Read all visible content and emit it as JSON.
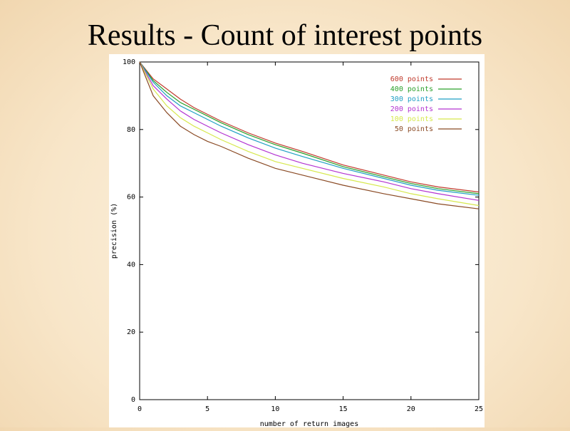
{
  "slide": {
    "title": "Results - Count of interest points"
  },
  "chart_data": {
    "type": "line",
    "xlabel": "number of return images",
    "ylabel": "precision (%)",
    "xlim": [
      0,
      25
    ],
    "ylim": [
      0,
      100
    ],
    "xticks": [
      0,
      5,
      10,
      15,
      20,
      25
    ],
    "yticks": [
      0,
      20,
      40,
      60,
      80,
      100
    ],
    "grid": false,
    "legend_position": "top-right",
    "x": [
      0,
      1,
      2,
      3,
      4,
      5,
      6,
      8,
      10,
      12,
      15,
      18,
      20,
      22,
      25
    ],
    "series": [
      {
        "name": "600 points",
        "color": "#c0392b",
        "values": [
          100,
          95,
          92,
          89,
          86.5,
          84.5,
          82.5,
          79,
          76,
          73.5,
          69.5,
          66.5,
          64.5,
          63,
          61.5
        ]
      },
      {
        "name": "400 points",
        "color": "#2aa02a",
        "values": [
          100,
          94.5,
          91,
          88,
          86,
          84,
          82,
          78.5,
          75.5,
          73,
          69,
          66,
          64,
          62.5,
          61
        ]
      },
      {
        "name": "300 points",
        "color": "#1f9fc4",
        "values": [
          100,
          94,
          90,
          87,
          85,
          83,
          81,
          77.5,
          74.5,
          72,
          68.5,
          65.5,
          63.5,
          62,
          60.5
        ]
      },
      {
        "name": "200 points",
        "color": "#b333d1",
        "values": [
          100,
          93,
          89,
          85.5,
          83,
          81,
          79,
          75.5,
          72.5,
          70,
          67,
          64.5,
          62.5,
          61,
          59
        ]
      },
      {
        "name": "100 points",
        "color": "#d6e84c",
        "values": [
          100,
          92,
          87,
          83.5,
          81,
          79,
          77,
          73.5,
          70.5,
          68.5,
          65.5,
          63,
          61,
          59.5,
          57.5
        ]
      },
      {
        "name": "50 points",
        "color": "#8a4a24",
        "values": [
          100,
          90,
          85,
          81,
          78.5,
          76.5,
          75,
          71.5,
          68.5,
          66.5,
          63.5,
          61,
          59.5,
          58,
          56.5
        ]
      }
    ]
  }
}
